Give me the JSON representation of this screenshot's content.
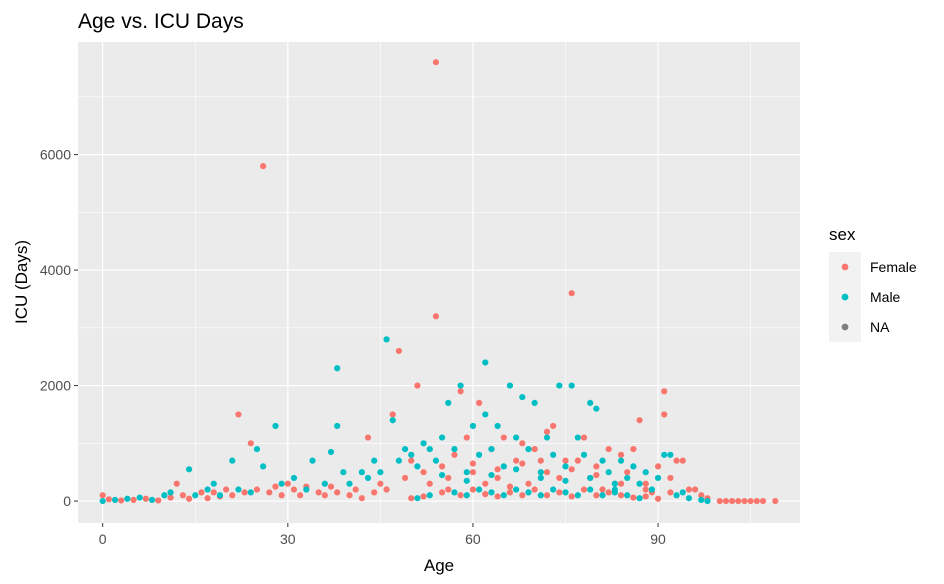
{
  "chart_data": {
    "type": "scatter",
    "title": "Age vs. ICU Days",
    "xlabel": "Age",
    "ylabel": "ICU (Days)",
    "xlim": [
      -4,
      113
    ],
    "ylim": [
      -380,
      7950
    ],
    "x_ticks": [
      0,
      30,
      60,
      90
    ],
    "x_tick_labels": [
      "0",
      "30",
      "60",
      "90"
    ],
    "y_ticks": [
      0,
      2000,
      4000,
      6000
    ],
    "y_tick_labels": [
      "0",
      "2000",
      "4000",
      "6000"
    ],
    "grid": true,
    "panel_background": "#ebebeb",
    "grid_color": "#ffffff",
    "legend": {
      "title": "sex",
      "position": "right",
      "entries": [
        "Female",
        "Male",
        "NA"
      ]
    },
    "series": [
      {
        "name": "Female",
        "color": "#f8766d",
        "points": [
          [
            0,
            100
          ],
          [
            1,
            30
          ],
          [
            3,
            10
          ],
          [
            5,
            20
          ],
          [
            7,
            40
          ],
          [
            9,
            10
          ],
          [
            11,
            60
          ],
          [
            12,
            300
          ],
          [
            13,
            100
          ],
          [
            14,
            40
          ],
          [
            16,
            150
          ],
          [
            17,
            50
          ],
          [
            18,
            150
          ],
          [
            19,
            80
          ],
          [
            20,
            200
          ],
          [
            21,
            100
          ],
          [
            22,
            1500
          ],
          [
            23,
            150
          ],
          [
            24,
            1000
          ],
          [
            25,
            200
          ],
          [
            26,
            5800
          ],
          [
            27,
            150
          ],
          [
            28,
            250
          ],
          [
            29,
            100
          ],
          [
            30,
            300
          ],
          [
            31,
            200
          ],
          [
            32,
            100
          ],
          [
            33,
            250
          ],
          [
            35,
            150
          ],
          [
            36,
            100
          ],
          [
            37,
            250
          ],
          [
            38,
            150
          ],
          [
            40,
            100
          ],
          [
            41,
            200
          ],
          [
            42,
            50
          ],
          [
            43,
            1100
          ],
          [
            44,
            150
          ],
          [
            45,
            300
          ],
          [
            46,
            200
          ],
          [
            47,
            1500
          ],
          [
            48,
            2600
          ],
          [
            49,
            400
          ],
          [
            50,
            700
          ],
          [
            51,
            2000
          ],
          [
            52,
            500
          ],
          [
            53,
            300
          ],
          [
            54,
            7600
          ],
          [
            54,
            3200
          ],
          [
            55,
            600
          ],
          [
            56,
            200
          ],
          [
            57,
            800
          ],
          [
            58,
            1900
          ],
          [
            59,
            1100
          ],
          [
            60,
            500
          ],
          [
            61,
            1700
          ],
          [
            62,
            300
          ],
          [
            63,
            900
          ],
          [
            64,
            400
          ],
          [
            65,
            1100
          ],
          [
            66,
            250
          ],
          [
            67,
            700
          ],
          [
            68,
            1000
          ],
          [
            69,
            300
          ],
          [
            70,
            900
          ],
          [
            71,
            700
          ],
          [
            72,
            1200
          ],
          [
            73,
            1300
          ],
          [
            74,
            400
          ],
          [
            75,
            700
          ],
          [
            76,
            3600
          ],
          [
            77,
            700
          ],
          [
            78,
            1100
          ],
          [
            79,
            400
          ],
          [
            80,
            600
          ],
          [
            81,
            200
          ],
          [
            82,
            900
          ],
          [
            83,
            300
          ],
          [
            84,
            800
          ],
          [
            85,
            500
          ],
          [
            86,
            900
          ],
          [
            87,
            1400
          ],
          [
            88,
            300
          ],
          [
            89,
            150
          ],
          [
            90,
            600
          ],
          [
            91,
            1500
          ],
          [
            91,
            1900
          ],
          [
            92,
            400
          ],
          [
            93,
            700
          ],
          [
            94,
            700
          ],
          [
            95,
            200
          ],
          [
            96,
            200
          ],
          [
            97,
            100
          ],
          [
            98,
            50
          ],
          [
            100,
            0
          ],
          [
            101,
            0
          ],
          [
            102,
            0
          ],
          [
            103,
            0
          ],
          [
            104,
            0
          ],
          [
            105,
            0
          ],
          [
            106,
            0
          ],
          [
            107,
            0
          ],
          [
            109,
            0
          ],
          [
            50,
            50
          ],
          [
            52,
            80
          ],
          [
            55,
            150
          ],
          [
            58,
            100
          ],
          [
            60,
            200
          ],
          [
            62,
            120
          ],
          [
            64,
            80
          ],
          [
            66,
            150
          ],
          [
            68,
            100
          ],
          [
            70,
            200
          ],
          [
            72,
            100
          ],
          [
            74,
            150
          ],
          [
            76,
            80
          ],
          [
            78,
            200
          ],
          [
            80,
            100
          ],
          [
            82,
            150
          ],
          [
            84,
            100
          ],
          [
            86,
            60
          ],
          [
            88,
            80
          ],
          [
            90,
            40
          ],
          [
            56,
            400
          ],
          [
            60,
            650
          ],
          [
            64,
            550
          ],
          [
            68,
            650
          ],
          [
            72,
            500
          ],
          [
            76,
            550
          ],
          [
            80,
            450
          ],
          [
            84,
            300
          ],
          [
            88,
            200
          ],
          [
            92,
            150
          ]
        ]
      },
      {
        "name": "Male",
        "color": "#00bfc4",
        "points": [
          [
            0,
            0
          ],
          [
            2,
            20
          ],
          [
            4,
            40
          ],
          [
            6,
            60
          ],
          [
            8,
            20
          ],
          [
            10,
            100
          ],
          [
            11,
            150
          ],
          [
            14,
            550
          ],
          [
            15,
            100
          ],
          [
            17,
            200
          ],
          [
            18,
            300
          ],
          [
            19,
            100
          ],
          [
            21,
            700
          ],
          [
            22,
            200
          ],
          [
            24,
            150
          ],
          [
            25,
            900
          ],
          [
            26,
            600
          ],
          [
            28,
            1300
          ],
          [
            29,
            300
          ],
          [
            31,
            400
          ],
          [
            33,
            200
          ],
          [
            34,
            700
          ],
          [
            36,
            300
          ],
          [
            37,
            850
          ],
          [
            38,
            2300
          ],
          [
            38,
            1300
          ],
          [
            39,
            500
          ],
          [
            40,
            300
          ],
          [
            42,
            500
          ],
          [
            43,
            400
          ],
          [
            44,
            700
          ],
          [
            45,
            500
          ],
          [
            46,
            2800
          ],
          [
            47,
            1400
          ],
          [
            48,
            700
          ],
          [
            49,
            900
          ],
          [
            50,
            800
          ],
          [
            51,
            600
          ],
          [
            52,
            1000
          ],
          [
            53,
            900
          ],
          [
            54,
            700
          ],
          [
            55,
            1100
          ],
          [
            56,
            1700
          ],
          [
            57,
            900
          ],
          [
            58,
            2000
          ],
          [
            59,
            500
          ],
          [
            60,
            1300
          ],
          [
            61,
            800
          ],
          [
            62,
            2400
          ],
          [
            62,
            1500
          ],
          [
            63,
            900
          ],
          [
            64,
            1300
          ],
          [
            65,
            600
          ],
          [
            66,
            2000
          ],
          [
            67,
            1100
          ],
          [
            68,
            1800
          ],
          [
            69,
            900
          ],
          [
            70,
            1700
          ],
          [
            71,
            500
          ],
          [
            72,
            1100
          ],
          [
            73,
            800
          ],
          [
            74,
            2000
          ],
          [
            75,
            600
          ],
          [
            76,
            2000
          ],
          [
            77,
            1100
          ],
          [
            78,
            800
          ],
          [
            79,
            1700
          ],
          [
            80,
            1600
          ],
          [
            81,
            700
          ],
          [
            82,
            500
          ],
          [
            83,
            300
          ],
          [
            84,
            700
          ],
          [
            85,
            400
          ],
          [
            86,
            600
          ],
          [
            87,
            300
          ],
          [
            88,
            500
          ],
          [
            89,
            200
          ],
          [
            90,
            400
          ],
          [
            91,
            800
          ],
          [
            92,
            800
          ],
          [
            93,
            100
          ],
          [
            94,
            150
          ],
          [
            95,
            50
          ],
          [
            97,
            20
          ],
          [
            98,
            0
          ],
          [
            51,
            50
          ],
          [
            53,
            100
          ],
          [
            57,
            150
          ],
          [
            59,
            100
          ],
          [
            61,
            200
          ],
          [
            63,
            150
          ],
          [
            65,
            100
          ],
          [
            67,
            200
          ],
          [
            69,
            150
          ],
          [
            71,
            100
          ],
          [
            73,
            200
          ],
          [
            75,
            150
          ],
          [
            77,
            100
          ],
          [
            79,
            200
          ],
          [
            81,
            100
          ],
          [
            83,
            150
          ],
          [
            85,
            100
          ],
          [
            87,
            50
          ],
          [
            55,
            450
          ],
          [
            59,
            350
          ],
          [
            63,
            450
          ],
          [
            67,
            550
          ],
          [
            71,
            400
          ],
          [
            75,
            350
          ],
          [
            79,
            400
          ],
          [
            83,
            200
          ]
        ]
      },
      {
        "name": "NA",
        "color": "#7f7f7f",
        "points": []
      }
    ]
  }
}
